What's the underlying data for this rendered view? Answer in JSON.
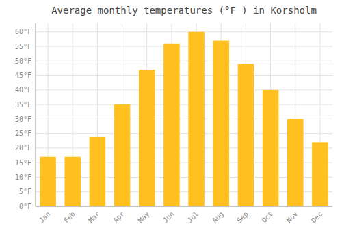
{
  "chart_data": {
    "type": "bar",
    "title": "Average monthly temperatures (°F ) in Korsholm",
    "categories": [
      "Jan",
      "Feb",
      "Mar",
      "Apr",
      "May",
      "Jun",
      "Jul",
      "Aug",
      "Sep",
      "Oct",
      "Nov",
      "Dec"
    ],
    "values": [
      17,
      17,
      24,
      35,
      47,
      56,
      60,
      57,
      49,
      40,
      30,
      22
    ],
    "color": "#FFC020",
    "ylim": [
      0,
      63
    ],
    "yticks": [
      {
        "value": 0,
        "label": "0°F"
      },
      {
        "value": 5,
        "label": "5°F"
      },
      {
        "value": 10,
        "label": "10°F"
      },
      {
        "value": 15,
        "label": "15°F"
      },
      {
        "value": 20,
        "label": "20°F"
      },
      {
        "value": 25,
        "label": "25°F"
      },
      {
        "value": 30,
        "label": "30°F"
      },
      {
        "value": 35,
        "label": "35°F"
      },
      {
        "value": 40,
        "label": "40°F"
      },
      {
        "value": 45,
        "label": "45°F"
      },
      {
        "value": 50,
        "label": "50°F"
      },
      {
        "value": 55,
        "label": "55°F"
      },
      {
        "value": 60,
        "label": "60°F"
      }
    ],
    "grid": true
  }
}
